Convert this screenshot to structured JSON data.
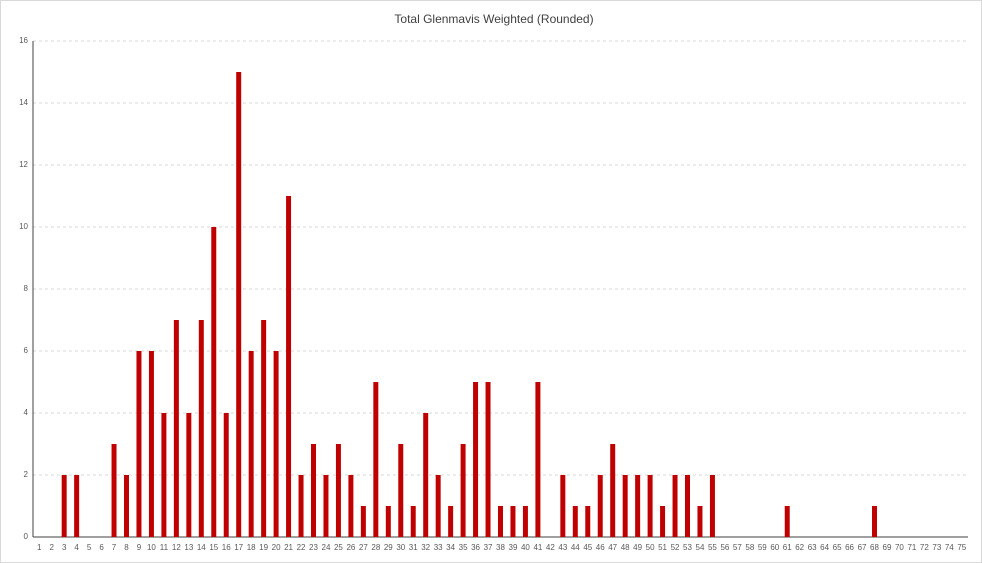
{
  "chart_data": {
    "type": "bar",
    "title": "Total Glenmavis Weighted (Rounded)",
    "categories": [
      "1",
      "2",
      "3",
      "4",
      "5",
      "6",
      "7",
      "8",
      "9",
      "10",
      "11",
      "12",
      "13",
      "14",
      "15",
      "16",
      "17",
      "18",
      "19",
      "20",
      "21",
      "22",
      "23",
      "24",
      "25",
      "26",
      "27",
      "28",
      "29",
      "30",
      "31",
      "32",
      "33",
      "34",
      "35",
      "36",
      "37",
      "38",
      "39",
      "40",
      "41",
      "42",
      "43",
      "44",
      "45",
      "46",
      "47",
      "48",
      "49",
      "50",
      "51",
      "52",
      "53",
      "54",
      "55",
      "56",
      "57",
      "58",
      "59",
      "60",
      "61",
      "62",
      "63",
      "64",
      "65",
      "66",
      "67",
      "68",
      "69",
      "70",
      "71",
      "72",
      "73",
      "74",
      "75"
    ],
    "values": [
      0,
      0,
      2,
      2,
      0,
      0,
      3,
      2,
      6,
      6,
      4,
      7,
      4,
      7,
      10,
      4,
      15,
      6,
      7,
      6,
      11,
      2,
      3,
      2,
      3,
      2,
      1,
      5,
      1,
      3,
      1,
      4,
      2,
      1,
      3,
      5,
      5,
      1,
      1,
      1,
      5,
      0,
      2,
      1,
      1,
      2,
      3,
      2,
      2,
      2,
      1,
      2,
      2,
      1,
      2,
      0,
      0,
      0,
      0,
      0,
      1,
      0,
      0,
      0,
      0,
      0,
      0,
      1,
      0,
      0,
      0,
      0,
      0,
      0,
      0
    ],
    "color": "#c00000",
    "ylim": [
      0,
      16
    ],
    "yticks": [
      0,
      2,
      4,
      6,
      8,
      10,
      12,
      14,
      16
    ],
    "grid": true
  }
}
